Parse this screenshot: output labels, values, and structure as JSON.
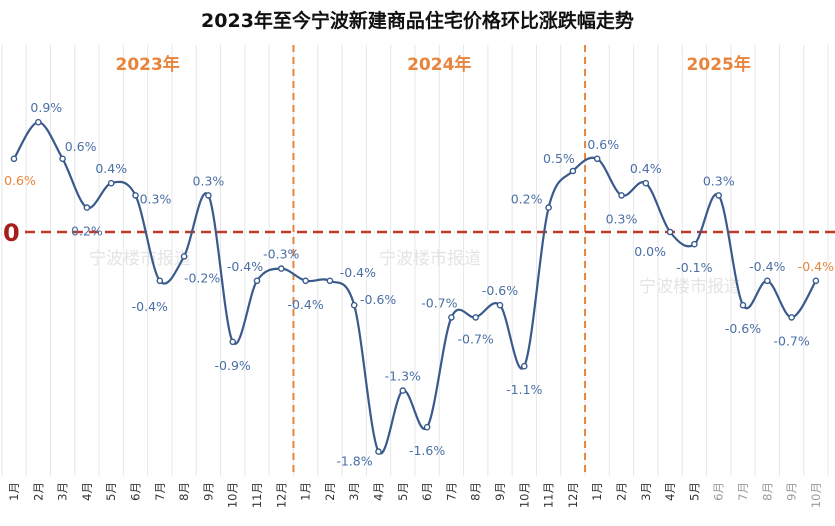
{
  "chart_data": {
    "type": "line",
    "title": "2023年至今宁波新建商品住宅价格环比涨跌幅走势",
    "year_labels": [
      "2023年",
      "2024年",
      "2025年"
    ],
    "zero_label": "0",
    "watermark": "宁波楼市报道",
    "x": [
      "1月",
      "2月",
      "3月",
      "4月",
      "5月",
      "6月",
      "7月",
      "8月",
      "9月",
      "10月",
      "11月",
      "12月",
      "1月",
      "2月",
      "3月",
      "4月",
      "5月",
      "6月",
      "7月",
      "8月",
      "9月",
      "10月",
      "11月",
      "12月",
      "1月",
      "2月",
      "3月",
      "4月",
      "5月",
      "6月",
      "7月",
      "8月",
      "9月",
      "10月"
    ],
    "values": [
      0.6,
      0.9,
      0.6,
      0.2,
      0.4,
      0.3,
      -0.4,
      -0.2,
      0.3,
      -0.9,
      -0.4,
      -0.3,
      -0.4,
      -0.4,
      -0.6,
      -1.8,
      -1.3,
      -1.6,
      -0.7,
      -0.7,
      -0.6,
      -1.1,
      0.2,
      0.5,
      0.6,
      0.3,
      0.4,
      0.0,
      -0.1,
      0.3,
      -0.6,
      -0.4,
      -0.7,
      -0.4
    ],
    "data_labels": [
      "0.6%",
      "0.9%",
      "0.6%",
      "0.2%",
      "0.4%",
      "0.3%",
      "-0.4%",
      "-0.2%",
      "0.3%",
      "-0.9%",
      "-0.4%",
      "-0.3%",
      "-0.4%",
      "-0.4%",
      "-0.6%",
      "-1.8%",
      "-1.3%",
      "-1.6%",
      "-0.7%",
      "-0.7%",
      "-0.6%",
      "-1.1%",
      "0.2%",
      "0.5%",
      "0.6%",
      "0.3%",
      "0.4%",
      "0.0%",
      "-0.1%",
      "0.3%",
      "-0.6%",
      "-0.4%",
      "-0.7%",
      "-0.4%"
    ],
    "unit": "%",
    "grid": "vertical",
    "colors": {
      "line": "#3a5a8c",
      "label": "#4a6fa5",
      "highlight": "#e8843c",
      "year": "#e8843c",
      "divider": "#e8843c",
      "zero_line": "#c0392b",
      "zero_label": "#a81c1c",
      "grid": "#e6e6e6"
    }
  }
}
